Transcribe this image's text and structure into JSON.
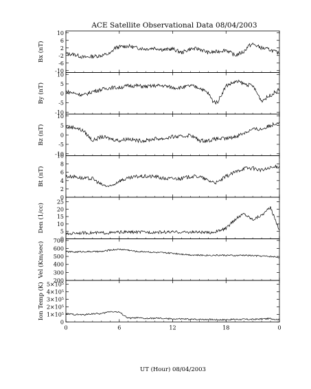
{
  "title": "ACE Satellite Observational Data   08/04/2003",
  "xlabel": "UT (Hour)   08/04/2003",
  "chart_data": [
    {
      "type": "line",
      "ylabel": "Bx (nT)",
      "ylim": [
        -11,
        11
      ],
      "yticks": [
        "10",
        "6",
        "2",
        "-2",
        "-6",
        "-10"
      ],
      "ytick_values": [
        10,
        6,
        2,
        -2,
        -6,
        -10
      ],
      "xlim": [
        0,
        24
      ],
      "x": [
        0,
        1,
        2,
        3,
        4,
        5,
        5.5,
        6,
        7,
        8,
        9,
        10,
        11,
        12,
        13,
        14,
        15,
        16,
        17,
        18,
        19,
        20,
        20.5,
        21,
        22,
        23,
        24
      ],
      "values": [
        -1,
        -1.5,
        -3,
        -2.5,
        -2,
        -1,
        2,
        2.5,
        3,
        2,
        1.5,
        2,
        1,
        1.5,
        -0.5,
        1.5,
        1.5,
        -0.5,
        0,
        1,
        -2,
        0,
        3,
        4,
        2,
        1,
        -1
      ]
    },
    {
      "type": "line",
      "ylabel": "By (nT)",
      "ylim": [
        -11,
        11
      ],
      "yticks": [
        "10",
        "5",
        "0",
        "-5",
        "-10"
      ],
      "ytick_values": [
        10,
        5,
        0,
        -5,
        -10
      ],
      "xlim": [
        0,
        24
      ],
      "x": [
        0,
        1,
        2,
        3,
        4,
        5,
        6,
        7,
        8,
        9,
        10,
        11,
        12,
        13,
        14,
        15,
        16,
        16.5,
        17,
        18,
        19,
        19.5,
        20,
        21,
        22,
        23,
        24
      ],
      "values": [
        1,
        0,
        -1,
        1,
        2,
        3,
        3,
        4,
        4,
        3.5,
        4,
        4,
        3,
        3,
        4,
        3,
        0,
        -4,
        -5,
        4,
        6,
        6,
        5,
        4,
        -4,
        -1,
        2
      ]
    },
    {
      "type": "line",
      "ylabel": "Bz (nT)",
      "ylim": [
        -11,
        11
      ],
      "yticks": [
        "10",
        "5",
        "0",
        "-5",
        "-10"
      ],
      "ytick_values": [
        10,
        5,
        0,
        -5,
        -10
      ],
      "xlim": [
        0,
        24
      ],
      "x": [
        0,
        1,
        2,
        3,
        4,
        5,
        6,
        7,
        8,
        9,
        10,
        11,
        12,
        13,
        14,
        15,
        16,
        17,
        18,
        19,
        20,
        21,
        22,
        23,
        24
      ],
      "values": [
        4,
        4,
        2,
        -3,
        -1,
        -2,
        -3,
        -2,
        -3,
        -3,
        -2,
        -2,
        -1,
        -1,
        0,
        -3,
        -3,
        -2,
        -2,
        -1,
        1,
        3,
        3,
        5,
        7
      ]
    },
    {
      "type": "line",
      "ylabel": "Bt (nT)",
      "ylim": [
        0,
        10
      ],
      "yticks": [
        "10",
        "8",
        "6",
        "4",
        "2",
        "0"
      ],
      "ytick_values": [
        10,
        8,
        6,
        4,
        2,
        0
      ],
      "xlim": [
        0,
        24
      ],
      "x": [
        0,
        1,
        2,
        3,
        4,
        5,
        6,
        7,
        8,
        9,
        10,
        11,
        12,
        13,
        14,
        15,
        16,
        17,
        18,
        19,
        20,
        21,
        22,
        23,
        24
      ],
      "values": [
        5,
        5,
        4.5,
        4.5,
        3,
        2.5,
        4,
        4.5,
        5,
        5,
        5,
        4.5,
        4.5,
        4.5,
        5,
        5,
        4,
        3.5,
        5,
        6,
        7,
        7,
        6.5,
        7,
        7.5
      ]
    },
    {
      "type": "line",
      "ylabel": "Den (1/cc)",
      "ylim": [
        0,
        28
      ],
      "yticks": [
        "25",
        "20",
        "15",
        "10",
        "5",
        "0"
      ],
      "ytick_values": [
        25,
        20,
        15,
        10,
        5,
        0
      ],
      "xlim": [
        0,
        24
      ],
      "x": [
        0,
        1,
        2,
        3,
        4,
        5,
        6,
        7,
        8,
        9,
        10,
        11,
        12,
        13,
        14,
        15,
        16,
        17,
        18,
        19,
        20,
        21,
        22,
        23,
        24
      ],
      "values": [
        3,
        4,
        4,
        4,
        4,
        4,
        4.5,
        4.5,
        4.5,
        4.5,
        4.5,
        4.5,
        4.5,
        4.5,
        4.5,
        4.5,
        4,
        5,
        7,
        13,
        17,
        13,
        16,
        21,
        6
      ]
    },
    {
      "type": "line",
      "ylabel": "Vel (Km/sec)",
      "ylim": [
        200,
        720
      ],
      "yticks": [
        "700",
        "600",
        "500",
        "400",
        "300",
        "200"
      ],
      "ytick_values": [
        700,
        600,
        500,
        400,
        300,
        200
      ],
      "xlim": [
        0,
        24
      ],
      "x": [
        0,
        1,
        2,
        3,
        4,
        5,
        6,
        7,
        8,
        9,
        10,
        11,
        12,
        13,
        14,
        15,
        16,
        17,
        18,
        19,
        20,
        21,
        22,
        23,
        24
      ],
      "values": [
        560,
        555,
        560,
        560,
        560,
        580,
        590,
        580,
        560,
        560,
        550,
        545,
        540,
        530,
        520,
        515,
        515,
        515,
        515,
        510,
        515,
        510,
        505,
        500,
        490
      ]
    },
    {
      "type": "line",
      "ylabel": "Ion Temp (K)",
      "ylim": [
        0,
        550000
      ],
      "yticks": [
        "5×10⁵",
        "4×10⁵",
        "3×10⁵",
        "2×10⁵",
        "1×10⁵",
        "0"
      ],
      "ytick_values": [
        500000,
        400000,
        300000,
        200000,
        100000,
        0
      ],
      "xlim": [
        0,
        24
      ],
      "x": [
        0,
        1,
        2,
        3,
        4,
        5,
        6,
        7,
        8,
        9,
        10,
        11,
        12,
        13,
        14,
        15,
        16,
        17,
        18,
        19,
        20,
        21,
        22,
        23,
        24
      ],
      "values": [
        110000,
        100000,
        95000,
        110000,
        110000,
        140000,
        130000,
        50000,
        55000,
        45000,
        50000,
        45000,
        40000,
        40000,
        35000,
        35000,
        35000,
        30000,
        30000,
        35000,
        35000,
        35000,
        40000,
        45000,
        30000
      ]
    }
  ],
  "xticks": [
    "0",
    "6",
    "12",
    "18",
    "0"
  ],
  "xtick_values": [
    0,
    6,
    12,
    18,
    24
  ]
}
